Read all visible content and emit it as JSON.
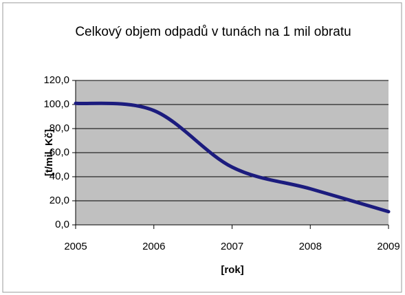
{
  "chart_data": {
    "type": "line",
    "title": "Celkový objem odpadů v tunách na 1 mil obratu",
    "x_label": "[rok]",
    "y_label": "[t/mil. Kč]",
    "x": [
      2005,
      2006,
      2007,
      2008,
      2009
    ],
    "series": [
      {
        "name": "Celkový objem odpadů",
        "color": "#1c1c7e",
        "values": [
          101,
          95,
          48,
          30,
          11
        ]
      }
    ],
    "xlim": [
      2005,
      2009
    ],
    "xticks": [
      2005,
      2006,
      2007,
      2008,
      2009
    ],
    "ylim": [
      0,
      120
    ],
    "yticks": [
      {
        "value": 0,
        "label": "0,0"
      },
      {
        "value": 20,
        "label": "20,0"
      },
      {
        "value": 40,
        "label": "40,0"
      },
      {
        "value": 60,
        "label": "60,0"
      },
      {
        "value": 80,
        "label": "80,0"
      },
      {
        "value": 100,
        "label": "100,0"
      },
      {
        "value": 120,
        "label": "120,0"
      }
    ],
    "grid": true,
    "plot_background": "#c0c0c0"
  }
}
